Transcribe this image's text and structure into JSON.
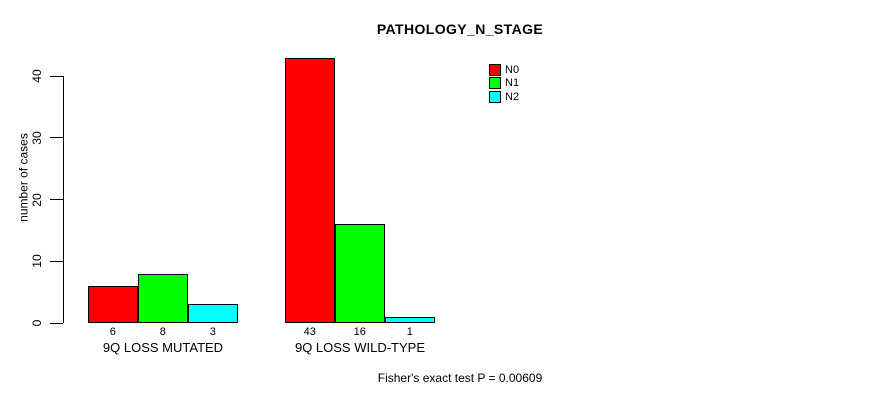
{
  "chart_data": {
    "type": "bar",
    "title": "PATHOLOGY_N_STAGE",
    "ylabel": "number of cases",
    "xlabel": "",
    "categories": [
      "9Q LOSS MUTATED",
      "9Q LOSS WILD-TYPE"
    ],
    "series": [
      {
        "name": "N0",
        "color": "#FF0000",
        "values": [
          6,
          43
        ]
      },
      {
        "name": "N1",
        "color": "#00FF00",
        "values": [
          8,
          16
        ]
      },
      {
        "name": "N2",
        "color": "#00FFFF",
        "values": [
          3,
          1
        ]
      }
    ],
    "y_ticks": [
      0,
      10,
      20,
      30,
      40
    ],
    "ylim": [
      0,
      43
    ],
    "grid": false,
    "legend_position": "top-right",
    "bar_border_color": "#000000",
    "show_bar_values": true,
    "bar_value_labels": [
      6,
      8,
      3,
      43,
      16,
      1
    ],
    "footnote": "Fisher's exact test P = 0.00609"
  }
}
